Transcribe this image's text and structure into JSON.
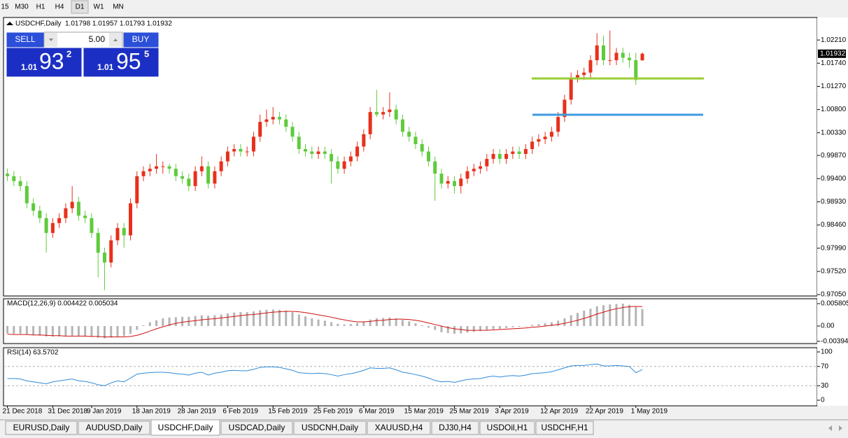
{
  "toolbar": {
    "timeframes": [
      "15",
      "M30",
      "H1",
      "H4",
      "D1",
      "W1",
      "MN"
    ]
  },
  "chart_data": [
    {
      "type": "candlestick",
      "title": "USDCHF,Daily",
      "header_values": "1.01798 1.01957 1.01793 1.01932",
      "colors": {
        "up": "#e8301b",
        "down": "#5ecb3c"
      },
      "categories": [
        null,
        "21 Dec 2018",
        null,
        null,
        null,
        null,
        null,
        null,
        "31 Dec 2018",
        null,
        null,
        null,
        null,
        null,
        "9 Jan 2019",
        null,
        null,
        null,
        null,
        null,
        null,
        "18 Jan 2019",
        null,
        null,
        null,
        null,
        null,
        null,
        "28 Jan 2019",
        null,
        null,
        null,
        null,
        null,
        null,
        "6 Feb 2019",
        null,
        null,
        null,
        null,
        null,
        null,
        "15 Feb 2019",
        null,
        null,
        null,
        null,
        null,
        null,
        "25 Feb 2019",
        null,
        null,
        null,
        null,
        null,
        null,
        "6 Mar 2019",
        null,
        null,
        null,
        null,
        null,
        null,
        "15 Mar 2019",
        null,
        null,
        null,
        null,
        null,
        null,
        "25 Mar 2019",
        null,
        null,
        null,
        null,
        null,
        null,
        "3 Apr 2019",
        null,
        null,
        null,
        null,
        null,
        null,
        "12 Apr 2019",
        null,
        null,
        null,
        null,
        null,
        null,
        "22 Apr 2019",
        null,
        null,
        null,
        null,
        null,
        null,
        "1 May 2019",
        null
      ],
      "candles": [
        [
          0.996,
          0.9975,
          0.994,
          0.995
        ],
        [
          0.995,
          0.996,
          0.9935,
          0.9945
        ],
        [
          0.9945,
          0.9955,
          0.9925,
          0.9935
        ],
        [
          0.9935,
          0.9945,
          0.9915,
          0.9925
        ],
        [
          0.9925,
          0.9935,
          0.988,
          0.989
        ],
        [
          0.989,
          0.99,
          0.9865,
          0.9875
        ],
        [
          0.9875,
          0.9885,
          0.985,
          0.986
        ],
        [
          0.986,
          0.987,
          0.979,
          0.983
        ],
        [
          0.983,
          0.986,
          0.982,
          0.985
        ],
        [
          0.985,
          0.987,
          0.984,
          0.986
        ],
        [
          0.986,
          0.989,
          0.985,
          0.988
        ],
        [
          0.988,
          0.9925,
          0.987,
          0.9893
        ],
        [
          0.9893,
          0.9903,
          0.9855,
          0.9865
        ],
        [
          0.9865,
          0.9875,
          0.985,
          0.986
        ],
        [
          0.986,
          0.987,
          0.982,
          0.983
        ],
        [
          0.983,
          0.984,
          0.974,
          0.979
        ],
        [
          0.979,
          0.98,
          0.9714,
          0.977
        ],
        [
          0.977,
          0.9825,
          0.976,
          0.9815
        ],
        [
          0.9815,
          0.985,
          0.9805,
          0.984
        ],
        [
          0.984,
          0.985,
          0.98,
          0.9825
        ],
        [
          0.9825,
          0.99,
          0.9815,
          0.989
        ],
        [
          0.989,
          0.9955,
          0.988,
          0.9945
        ],
        [
          0.9945,
          0.9965,
          0.9935,
          0.9955
        ],
        [
          0.9955,
          0.997,
          0.9945,
          0.996
        ],
        [
          0.996,
          0.999,
          0.995,
          0.9965
        ],
        [
          0.9965,
          0.9975,
          0.995,
          0.9965
        ],
        [
          0.9965,
          0.997,
          0.995,
          0.996
        ],
        [
          0.996,
          0.997,
          0.9935,
          0.9945
        ],
        [
          0.9945,
          0.9955,
          0.993,
          0.994
        ],
        [
          0.994,
          0.995,
          0.9915,
          0.9925
        ],
        [
          0.9925,
          0.9965,
          0.9915,
          0.9955
        ],
        [
          0.9955,
          0.9985,
          0.9945,
          0.9965
        ],
        [
          0.9965,
          0.9975,
          0.992,
          0.993
        ],
        [
          0.993,
          0.9965,
          0.992,
          0.9955
        ],
        [
          0.9955,
          0.9985,
          0.9945,
          0.9975
        ],
        [
          0.9975,
          1.0005,
          0.9965,
          0.9995
        ],
        [
          0.9995,
          1.001,
          0.9985,
          1.0
        ],
        [
          1.0,
          1.001,
          0.9985,
          0.9995
        ],
        [
          0.9995,
          1.0005,
          0.9985,
          0.9995
        ],
        [
          0.9995,
          1.0035,
          0.9985,
          1.0025
        ],
        [
          1.0025,
          1.007,
          1.0015,
          1.0055
        ],
        [
          1.0055,
          1.008,
          1.0045,
          1.006
        ],
        [
          1.006,
          1.0085,
          1.005,
          1.0065
        ],
        [
          1.0065,
          1.0075,
          1.005,
          1.006
        ],
        [
          1.006,
          1.007,
          1.0035,
          1.0045
        ],
        [
          1.0045,
          1.0055,
          1.0015,
          1.0025
        ],
        [
          1.0025,
          1.0035,
          0.999,
          1.0
        ],
        [
          1.0,
          1.001,
          0.9985,
          0.9995
        ],
        [
          0.9995,
          1.0005,
          0.998,
          0.999
        ],
        [
          0.999,
          1.0005,
          0.998,
          0.9995
        ],
        [
          0.9995,
          1.0005,
          0.998,
          0.999
        ],
        [
          0.999,
          1.0,
          0.993,
          0.9975
        ],
        [
          0.9975,
          0.9985,
          0.995,
          0.996
        ],
        [
          0.996,
          0.9985,
          0.995,
          0.9975
        ],
        [
          0.9975,
          0.9995,
          0.9965,
          0.9985
        ],
        [
          0.9985,
          1.0015,
          0.9975,
          1.0005
        ],
        [
          1.0005,
          1.004,
          0.9995,
          1.003
        ],
        [
          1.003,
          1.0085,
          1.002,
          1.0075
        ],
        [
          1.0075,
          1.012,
          1.0065,
          1.007
        ],
        [
          1.007,
          1.0085,
          1.006,
          1.0075
        ],
        [
          1.0075,
          1.0115,
          1.0065,
          1.008
        ],
        [
          1.008,
          1.009,
          1.005,
          1.006
        ],
        [
          1.006,
          1.007,
          1.0025,
          1.0035
        ],
        [
          1.0035,
          1.0045,
          1.0015,
          1.0025
        ],
        [
          1.0025,
          1.0035,
          1.0,
          1.001
        ],
        [
          1.001,
          1.002,
          0.9985,
          0.9995
        ],
        [
          0.9995,
          1.0005,
          0.9965,
          0.9975
        ],
        [
          0.9975,
          0.9985,
          0.9895,
          0.995
        ],
        [
          0.995,
          0.996,
          0.992,
          0.993
        ],
        [
          0.993,
          0.9945,
          0.992,
          0.9935
        ],
        [
          0.9935,
          0.9945,
          0.991,
          0.9925
        ],
        [
          0.9925,
          0.995,
          0.991,
          0.994
        ],
        [
          0.994,
          0.9965,
          0.993,
          0.9955
        ],
        [
          0.9955,
          0.997,
          0.9945,
          0.996
        ],
        [
          0.996,
          0.9975,
          0.995,
          0.9965
        ],
        [
          0.9965,
          0.999,
          0.9955,
          0.998
        ],
        [
          0.998,
          1.0,
          0.997,
          0.999
        ],
        [
          0.999,
          1.0,
          0.997,
          0.998
        ],
        [
          0.998,
          1.0,
          0.997,
          0.999
        ],
        [
          0.999,
          1.0005,
          0.998,
          0.9995
        ],
        [
          0.9995,
          1.0005,
          0.998,
          0.999
        ],
        [
          0.999,
          1.001,
          0.998,
          1.0
        ],
        [
          1.0,
          1.0025,
          0.999,
          1.0015
        ],
        [
          1.0015,
          1.003,
          1.0005,
          1.002
        ],
        [
          1.002,
          1.0035,
          1.001,
          1.0025
        ],
        [
          1.0025,
          1.0045,
          1.0015,
          1.0035
        ],
        [
          1.0035,
          1.0075,
          1.0025,
          1.0065
        ],
        [
          1.0065,
          1.011,
          1.0055,
          1.01
        ],
        [
          1.01,
          1.0155,
          1.009,
          1.0145
        ],
        [
          1.0145,
          1.016,
          1.0135,
          1.015
        ],
        [
          1.015,
          1.0165,
          1.014,
          1.0155
        ],
        [
          1.0155,
          1.019,
          1.0145,
          1.018
        ],
        [
          1.018,
          1.0235,
          1.017,
          1.021
        ],
        [
          1.021,
          1.023,
          1.017,
          1.018
        ],
        [
          1.018,
          1.024,
          1.017,
          1.018
        ],
        [
          1.018,
          1.0205,
          1.017,
          1.0195
        ],
        [
          1.0195,
          1.0205,
          1.0175,
          1.0185
        ],
        [
          1.0185,
          1.0195,
          1.0165,
          1.018
        ],
        [
          1.018,
          1.0195,
          1.013,
          1.014
        ],
        [
          1.01798,
          1.01957,
          1.01793,
          1.01932
        ]
      ],
      "ylim": [
        0.97022,
        1.02666
      ],
      "yticks": [
        {
          "value": 1.0221,
          "label": "1.02210"
        },
        {
          "value": 1.0174,
          "label": "1.01740"
        },
        {
          "value": 1.0127,
          "label": "1.01270"
        },
        {
          "value": 1.008,
          "label": "1.00800"
        },
        {
          "value": 1.0033,
          "label": "1.00330"
        },
        {
          "value": 0.9987,
          "label": "0.99870"
        },
        {
          "value": 0.994,
          "label": "0.99400"
        },
        {
          "value": 0.9893,
          "label": "0.98930"
        },
        {
          "value": 0.9846,
          "label": "0.98460"
        },
        {
          "value": 0.9799,
          "label": "0.97990"
        },
        {
          "value": 0.9752,
          "label": "0.97520"
        },
        {
          "value": 0.9705,
          "label": "0.97050"
        }
      ],
      "current_price": {
        "value": 1.01932,
        "label": "1.01932"
      },
      "levels": [
        {
          "value": 1.0143,
          "color": "#9acd32"
        },
        {
          "value": 1.00695,
          "color": "#3d9be0"
        }
      ]
    },
    {
      "type": "macd",
      "title": "MACD(12,26,9) 0.004422 0.005034",
      "histogram": {
        "color": "#b4b4b4",
        "values": [
          -0.0019,
          -0.0019,
          -0.002,
          -0.002,
          -0.0022,
          -0.0024,
          -0.0025,
          -0.0027,
          -0.0027,
          -0.0027,
          -0.0026,
          -0.0025,
          -0.0026,
          -0.0027,
          -0.0028,
          -0.003,
          -0.0032,
          -0.003,
          -0.0027,
          -0.0026,
          -0.002,
          -0.001,
          0.0002,
          0.001,
          0.0015,
          0.002,
          0.0022,
          0.0023,
          0.0024,
          0.0024,
          0.0026,
          0.0028,
          0.0027,
          0.0028,
          0.003,
          0.0033,
          0.0035,
          0.0036,
          0.0036,
          0.0038,
          0.0041,
          0.0042,
          0.0043,
          0.0042,
          0.004,
          0.0036,
          0.003,
          0.0025,
          0.002,
          0.0017,
          0.0014,
          0.001,
          0.0006,
          0.0004,
          0.0005,
          0.0008,
          0.0012,
          0.0017,
          0.002,
          0.0021,
          0.0022,
          0.002,
          0.0016,
          0.0012,
          0.0007,
          0.0002,
          -0.0004,
          -0.001,
          -0.0016,
          -0.0018,
          -0.002,
          -0.0019,
          -0.0017,
          -0.0015,
          -0.0013,
          -0.001,
          -0.0008,
          -0.0007,
          -0.0005,
          -0.0003,
          -0.0002,
          0.0,
          0.0003,
          0.0005,
          0.0007,
          0.001,
          0.0014,
          0.002,
          0.0028,
          0.0034,
          0.004,
          0.0045,
          0.0051,
          0.0054,
          0.0056,
          0.0057,
          0.0058,
          0.0055,
          0.0049,
          0.004422
        ]
      },
      "signal": {
        "color": "#d01010",
        "values": [
          -0.0021,
          -0.0021,
          -0.0022,
          -0.0022,
          -0.0022,
          -0.0023,
          -0.0023,
          -0.0024,
          -0.0025,
          -0.0025,
          -0.0026,
          -0.0026,
          -0.0026,
          -0.0026,
          -0.0027,
          -0.0027,
          -0.0028,
          -0.0028,
          -0.0028,
          -0.0028,
          -0.0027,
          -0.0024,
          -0.0019,
          -0.0013,
          -0.0007,
          -0.0002,
          0.0003,
          0.0007,
          0.001,
          0.0012,
          0.0014,
          0.0016,
          0.0018,
          0.0019,
          0.0021,
          0.0023,
          0.0025,
          0.0027,
          0.0029,
          0.003,
          0.0032,
          0.0034,
          0.0036,
          0.0037,
          0.0038,
          0.0038,
          0.0037,
          0.0035,
          0.0032,
          0.0029,
          0.0026,
          0.0023,
          0.0019,
          0.0016,
          0.0013,
          0.0011,
          0.0011,
          0.0012,
          0.0014,
          0.0015,
          0.0017,
          0.0018,
          0.0018,
          0.0017,
          0.0015,
          0.0012,
          0.0008,
          0.0004,
          0.0,
          -0.0004,
          -0.0007,
          -0.0009,
          -0.0011,
          -0.0011,
          -0.0011,
          -0.0011,
          -0.001,
          -0.0009,
          -0.0008,
          -0.0007,
          -0.0006,
          -0.0005,
          -0.0003,
          -0.0002,
          0.0,
          0.0002,
          0.0004,
          0.0007,
          0.0011,
          0.0015,
          0.002,
          0.0025,
          0.0031,
          0.0036,
          0.0041,
          0.0045,
          0.0048,
          0.005,
          0.0051,
          0.005034
        ]
      },
      "ylim": [
        -0.00453,
        0.00707
      ],
      "yticks": [
        0.005805,
        {
          "value": 0,
          "label": "0.00"
        },
        -0.003945
      ]
    },
    {
      "type": "rsi",
      "title": "RSI(14) 63.5702",
      "color": "#2f8ad8",
      "values": [
        46,
        45,
        45,
        44,
        40,
        38,
        36,
        34,
        38,
        40,
        42,
        44,
        40,
        39,
        36,
        32,
        30,
        36,
        40,
        38,
        46,
        54,
        56,
        57,
        58,
        58,
        57,
        55,
        54,
        52,
        56,
        58,
        52,
        56,
        58,
        61,
        62,
        61,
        61,
        64,
        68,
        69,
        69,
        68,
        65,
        62,
        57,
        56,
        55,
        56,
        55,
        53,
        50,
        53,
        55,
        58,
        62,
        67,
        66,
        66,
        67,
        63,
        58,
        56,
        53,
        50,
        46,
        41,
        38,
        39,
        37,
        40,
        43,
        44,
        45,
        48,
        50,
        48,
        50,
        51,
        50,
        52,
        55,
        56,
        57,
        59,
        63,
        67,
        71,
        72,
        72,
        74,
        75,
        71,
        71,
        72,
        71,
        70,
        57,
        63.5702
      ],
      "ylim": [
        -11.6,
        108.7
      ],
      "yticks": [
        100,
        70,
        30,
        0
      ],
      "levels": [
        70,
        30
      ]
    }
  ],
  "trade_panel": {
    "sell": "SELL",
    "buy": "BUY",
    "lot": "5.00",
    "bid": {
      "big": "1.01",
      "main": "93",
      "small": "2"
    },
    "ask": {
      "big": "1.01",
      "main": "95",
      "small": "5"
    }
  },
  "tabs": [
    "EURUSD,Daily",
    "AUDUSD,Daily",
    "USDCHF,Daily",
    "USDCAD,Daily",
    "USDCNH,Daily",
    "XAUUSD,H4",
    "DJ30,H4",
    "USDOil,H1",
    "USDCHF,H1"
  ],
  "active_tab": 2
}
